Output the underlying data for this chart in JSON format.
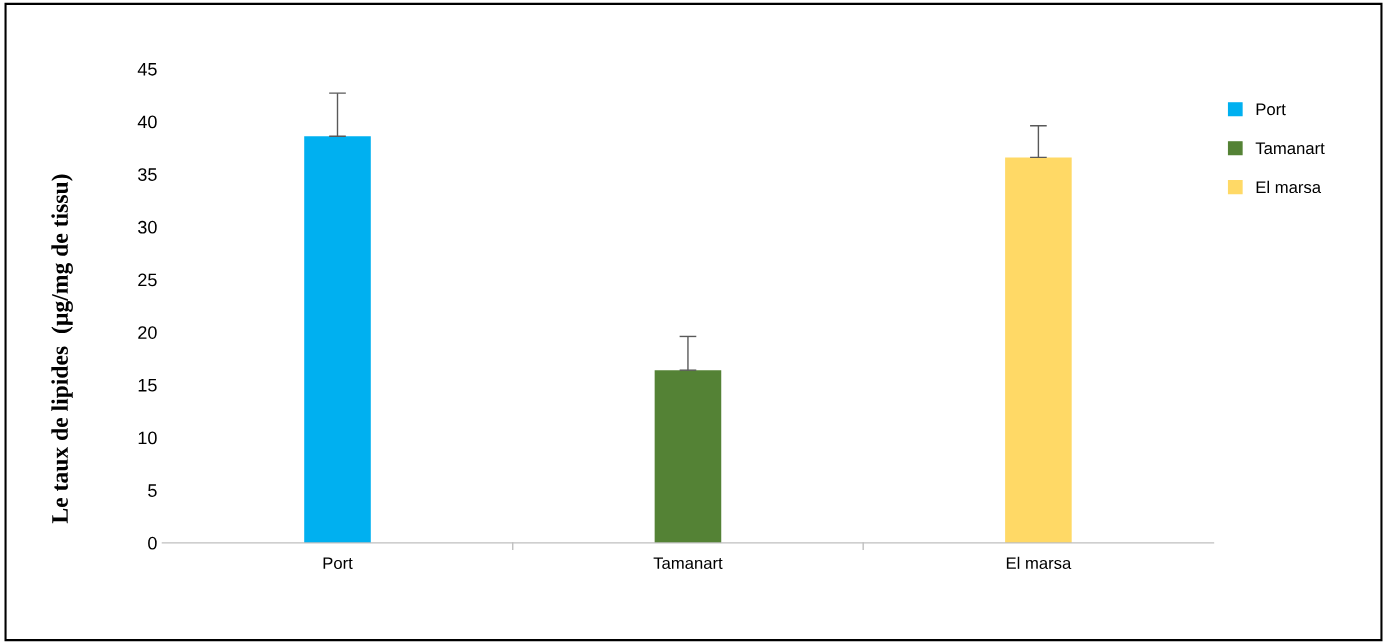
{
  "chart_data": {
    "type": "bar",
    "ylabel": "Le taux de lipides  (µg/mg de tissu)",
    "categories": [
      "Port",
      "Tamanart",
      "El marsa"
    ],
    "series": [
      {
        "name": "Port",
        "color": "#00b0f0",
        "values": [
          38.6,
          null,
          null
        ],
        "errors": [
          [
            38.6,
            42.7
          ],
          null,
          null
        ]
      },
      {
        "name": "Tamanart",
        "color": "#548235",
        "values": [
          null,
          16.4,
          null
        ],
        "errors": [
          null,
          [
            16.4,
            19.6
          ],
          null
        ]
      },
      {
        "name": "El marsa",
        "color": "#ffd966",
        "values": [
          null,
          null,
          36.6
        ],
        "errors": [
          null,
          null,
          [
            36.6,
            39.6
          ]
        ]
      }
    ],
    "ylim": [
      0,
      45
    ],
    "yticks": [
      0,
      5,
      10,
      15,
      20,
      25,
      30,
      35,
      40,
      45
    ],
    "grid": false,
    "legend": "top right"
  }
}
